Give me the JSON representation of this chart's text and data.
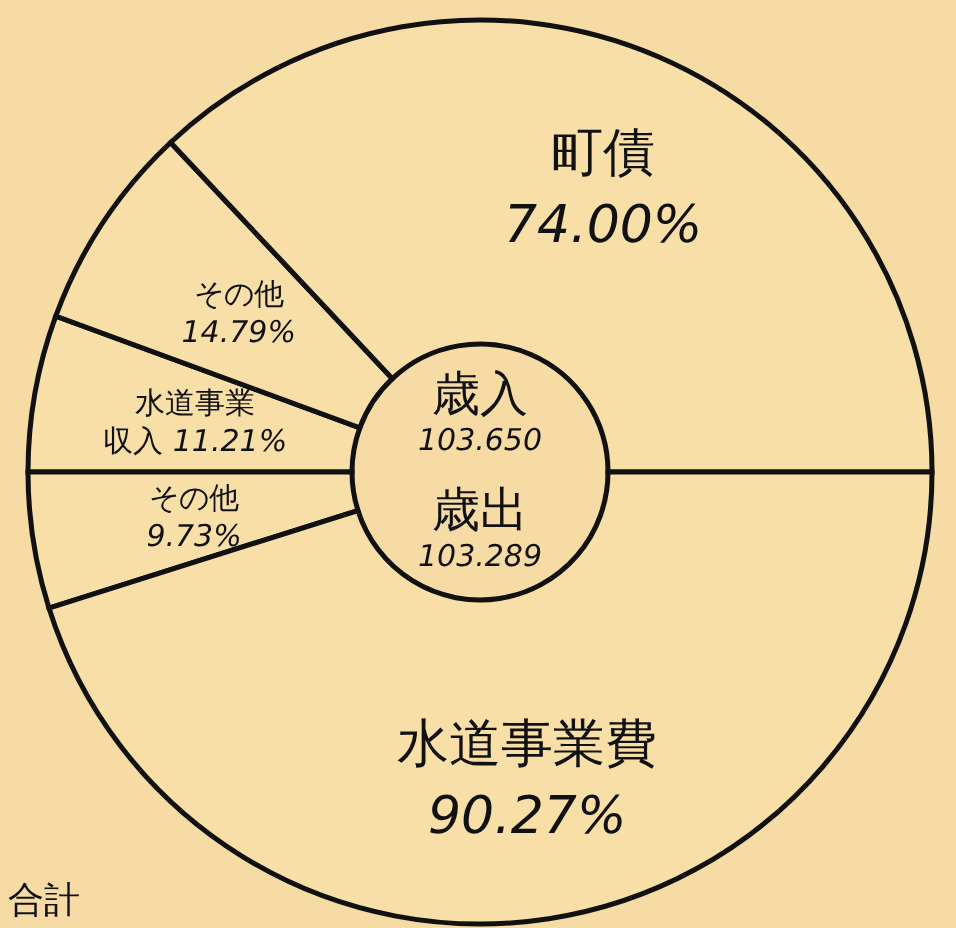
{
  "chart_data": [
    {
      "type": "donut",
      "title": "歳入",
      "subtitle": "103.650",
      "categories": [
        "水道事業収入",
        "その他",
        "町債"
      ],
      "values": [
        11.21,
        14.79,
        74.0
      ],
      "value_labels": [
        "11.21%",
        "14.79%",
        "74.00%"
      ],
      "colors": [
        "#f8dfa8",
        "#f8dfa8",
        "#f8dfa8"
      ],
      "legend": false
    },
    {
      "type": "donut",
      "title": "歳出",
      "subtitle": "103.289",
      "categories": [
        "その他",
        "水道事業費"
      ],
      "values": [
        9.73,
        90.27
      ],
      "value_labels": [
        "9.73%",
        "90.27%"
      ],
      "colors": [
        "#f8dfa8",
        "#f8dfa8"
      ],
      "legend": false,
      "annotations": [
        "合計"
      ]
    }
  ]
}
